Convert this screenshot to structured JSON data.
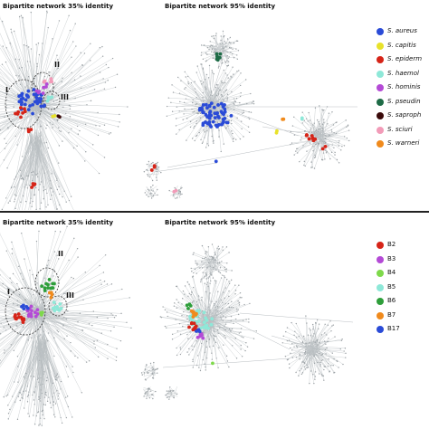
{
  "panels": [
    {
      "left_title": "Bipartite network 35% identity",
      "right_title": "Bipartite network 95% identity",
      "cluster_labels": [
        "I",
        "II",
        "III"
      ],
      "legend": [
        {
          "label": "S. aureus",
          "color": "#2a4bd7"
        },
        {
          "label": "S. capitis",
          "color": "#e8e22a"
        },
        {
          "label": "S. epiderm",
          "color": "#d62418"
        },
        {
          "label": "S. haemol",
          "color": "#8ee8d8"
        },
        {
          "label": "S. hominis",
          "color": "#b44ad6"
        },
        {
          "label": "S. pseudin",
          "color": "#1e6b46"
        },
        {
          "label": "S. saproph",
          "color": "#3a0a0a"
        },
        {
          "label": "S. sciuri",
          "color": "#f29bb8"
        },
        {
          "label": "S. warneri",
          "color": "#f08a1c"
        }
      ]
    },
    {
      "left_title": "Bipartite network 35% identity",
      "right_title": "Bipartite network 95% identity",
      "cluster_labels": [
        "I",
        "II",
        "III"
      ],
      "legend": [
        {
          "label": "B2",
          "color": "#d62418"
        },
        {
          "label": "B3",
          "color": "#b44ad6"
        },
        {
          "label": "B4",
          "color": "#7ed94a"
        },
        {
          "label": "B5",
          "color": "#8ee8d8"
        },
        {
          "label": "B6",
          "color": "#2e9e3a"
        },
        {
          "label": "B7",
          "color": "#f08a1c"
        },
        {
          "label": "B17",
          "color": "#2a4bd7"
        }
      ]
    }
  ]
}
